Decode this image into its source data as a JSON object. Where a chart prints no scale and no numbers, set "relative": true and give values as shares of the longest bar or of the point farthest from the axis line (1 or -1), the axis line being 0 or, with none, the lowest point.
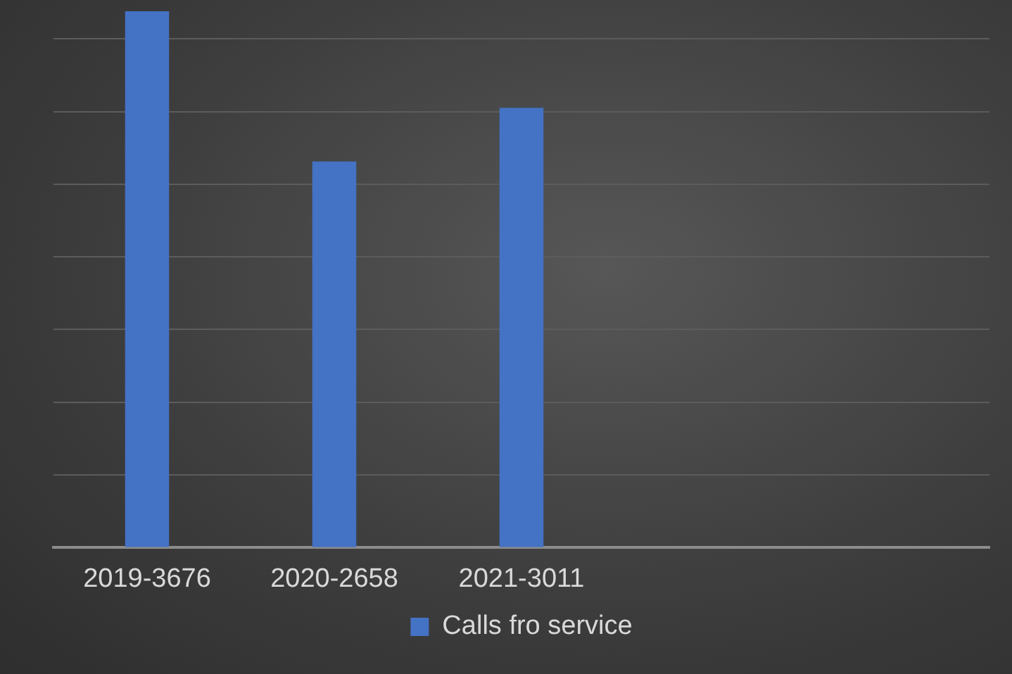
{
  "chart_data": {
    "type": "bar",
    "relative": true,
    "categories": [
      "2019-3676",
      "2020-2658",
      "2021-3011",
      null,
      null
    ],
    "series": [
      {
        "name": "Calls fro service",
        "color": "#4472c4",
        "values": [
          1,
          0.72,
          0.82,
          null,
          null
        ]
      }
    ],
    "grid": "y",
    "legend": "bottom"
  }
}
